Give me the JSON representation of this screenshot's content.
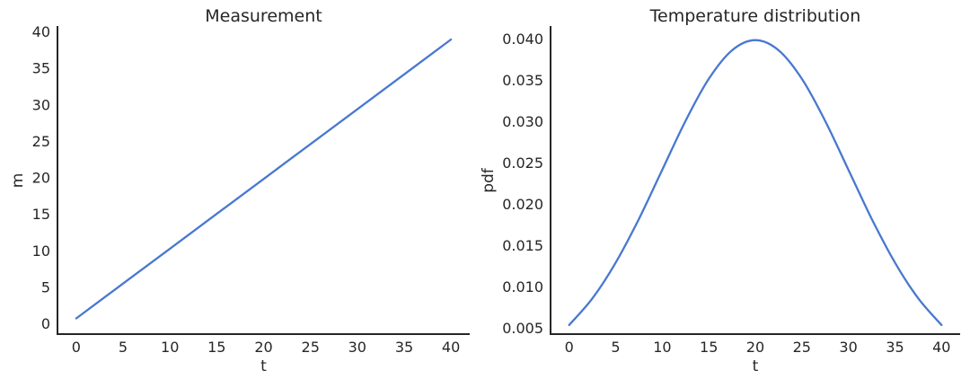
{
  "figure": {
    "background": "#ffffff",
    "text_color": "#262626",
    "spine_color": "#262626",
    "accent_line_color": "#4878d0"
  },
  "chart_data": [
    {
      "type": "line",
      "title": "Measurement",
      "xlabel": "t",
      "ylabel": "m",
      "line_color": "#4878d0",
      "grid": false,
      "legend": null,
      "xlim": [
        -2,
        42
      ],
      "ylim": [
        -1.4,
        40.8
      ],
      "xticks": {
        "values": [
          0,
          5,
          10,
          15,
          20,
          25,
          30,
          35,
          40
        ],
        "labels": [
          "0",
          "5",
          "10",
          "15",
          "20",
          "25",
          "30",
          "35",
          "40"
        ]
      },
      "yticks": {
        "values": [
          0,
          5,
          10,
          15,
          20,
          25,
          30,
          35,
          40
        ],
        "labels": [
          "0",
          "5",
          "10",
          "15",
          "20",
          "25",
          "30",
          "35",
          "40"
        ]
      },
      "x": [
        0,
        5,
        10,
        15,
        20,
        25,
        30,
        35,
        40
      ],
      "y": [
        0.75,
        5.53,
        10.3,
        15.08,
        19.85,
        24.63,
        29.4,
        34.18,
        38.95
      ]
    },
    {
      "type": "line",
      "title": "Temperature distribution",
      "xlabel": "t",
      "ylabel": "pdf",
      "line_color": "#4878d0",
      "grid": false,
      "legend": null,
      "xlim": [
        -2,
        42
      ],
      "ylim": [
        0.0043,
        0.0416
      ],
      "xticks": {
        "values": [
          0,
          5,
          10,
          15,
          20,
          25,
          30,
          35,
          40
        ],
        "labels": [
          "0",
          "5",
          "10",
          "15",
          "20",
          "25",
          "30",
          "35",
          "40"
        ]
      },
      "yticks": {
        "values": [
          0.005,
          0.01,
          0.015,
          0.02,
          0.025,
          0.03,
          0.035,
          0.04
        ],
        "labels": [
          "0.005",
          "0.010",
          "0.015",
          "0.020",
          "0.025",
          "0.030",
          "0.035",
          "0.040"
        ]
      },
      "x": [
        0,
        2.5,
        5,
        7.5,
        10,
        12.5,
        15,
        17.5,
        20,
        22.5,
        25,
        27.5,
        30,
        32.5,
        35,
        37.5,
        40
      ],
      "y": [
        0.005399,
        0.008628,
        0.012952,
        0.018265,
        0.024197,
        0.030114,
        0.035207,
        0.038667,
        0.039894,
        0.038667,
        0.035207,
        0.030114,
        0.024197,
        0.018265,
        0.012952,
        0.008628,
        0.005399
      ]
    }
  ]
}
